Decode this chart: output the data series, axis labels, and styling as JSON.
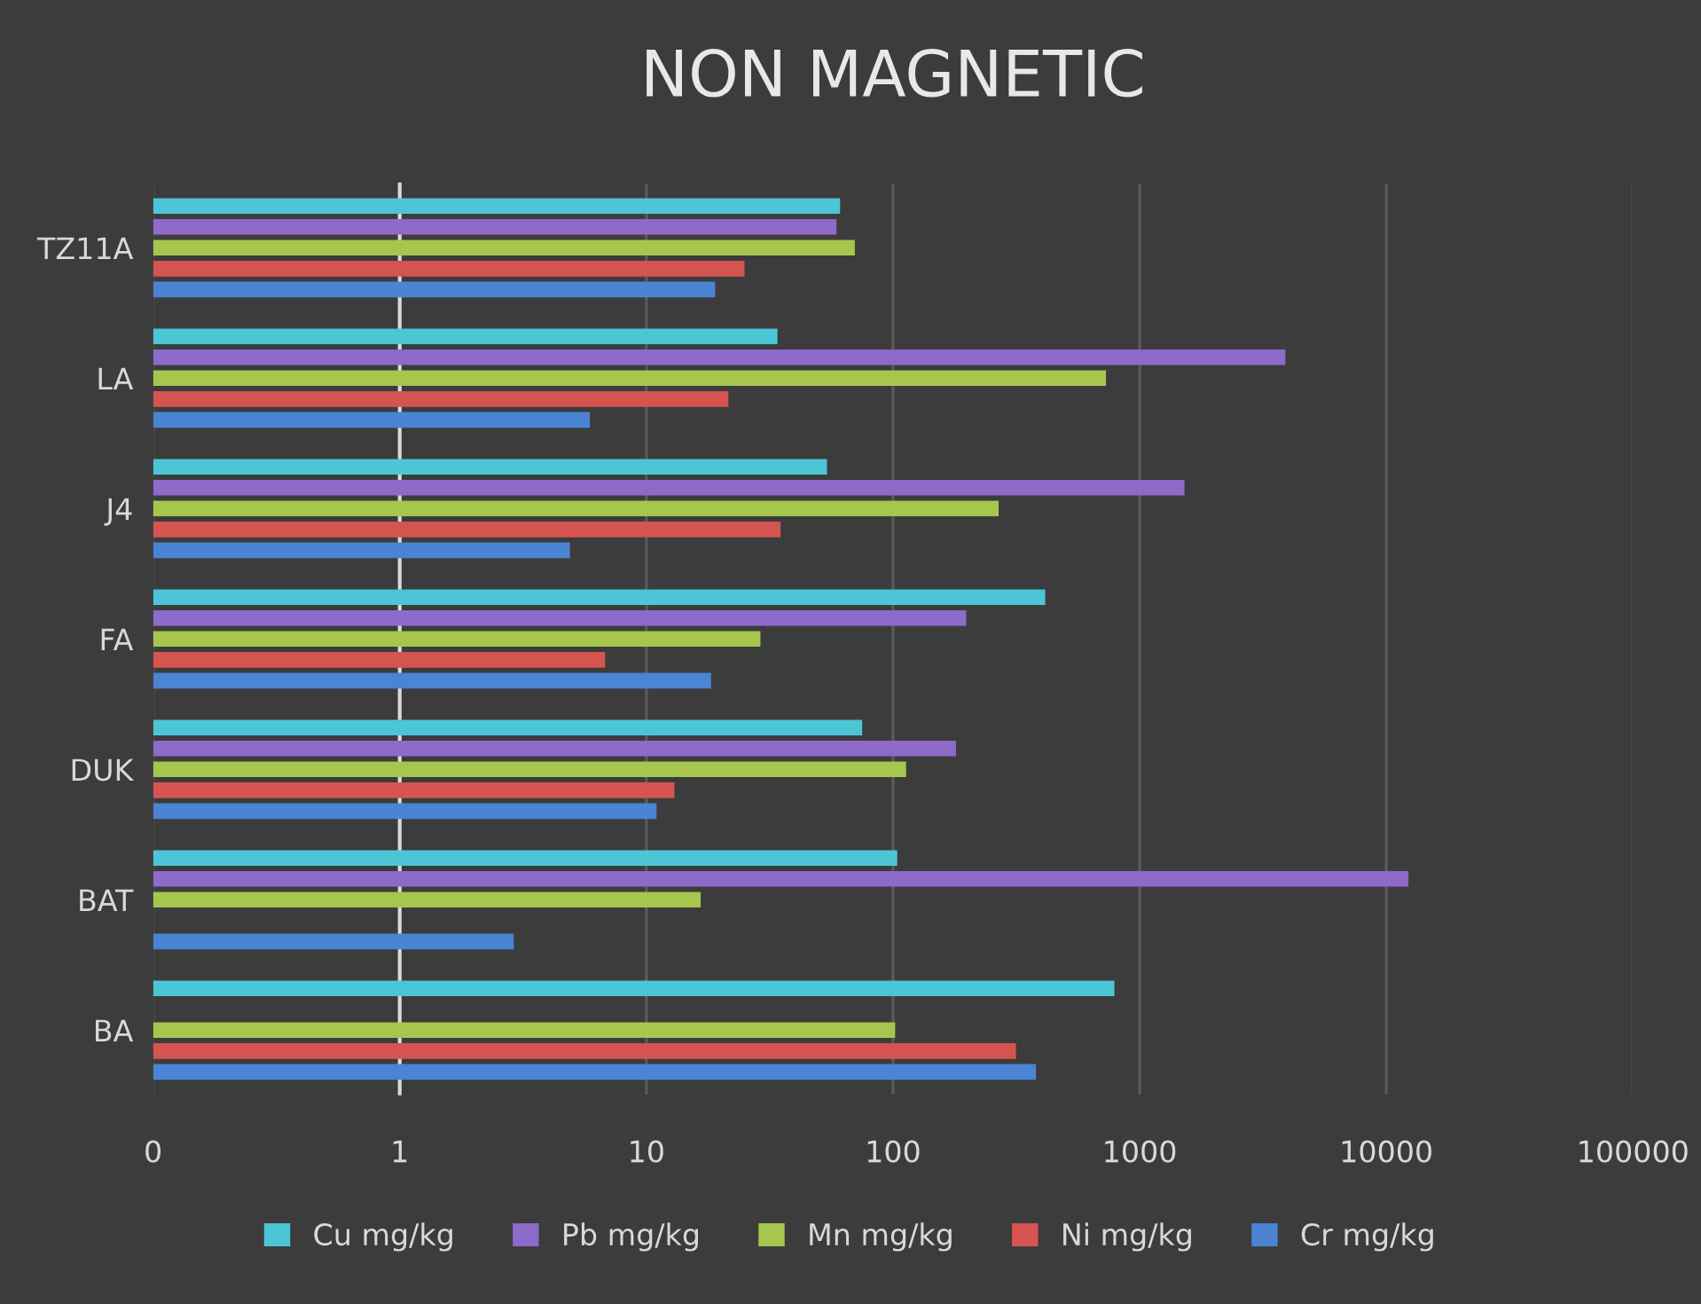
{
  "chart_data": {
    "type": "bar",
    "orientation": "horizontal",
    "title": "NON MAGNETIC",
    "categories": [
      "TZ11A",
      "LA",
      "J4",
      "FA",
      "DUK",
      "BAT",
      "BA"
    ],
    "series": [
      {
        "name": "Cu mg/kg",
        "color": "#4cc6d6",
        "values": [
          61,
          34,
          54,
          414,
          75,
          104,
          790
        ]
      },
      {
        "name": "Pb mg/kg",
        "color": "#8e6acb",
        "values": [
          59,
          3900,
          1520,
          198,
          180,
          12300,
          null
        ]
      },
      {
        "name": "Mn mg/kg",
        "color": "#a6c64e",
        "values": [
          70,
          730,
          268,
          29,
          113,
          16.6,
          102
        ]
      },
      {
        "name": "Ni mg/kg",
        "color": "#d65450",
        "values": [
          25,
          21.5,
          35,
          6.8,
          13,
          null,
          315
        ]
      },
      {
        "name": "Cr mg/kg",
        "color": "#4a84d2",
        "values": [
          19,
          5.9,
          4.9,
          18.3,
          11,
          2.9,
          380
        ]
      }
    ],
    "log": "x",
    "xlim": [
      0.1,
      100000
    ],
    "xticks": [
      {
        "value": 0.1,
        "label": "0"
      },
      1,
      10,
      100,
      1000,
      10000,
      100000
    ],
    "ref_lines": [
      {
        "axis": "x",
        "value": 1,
        "color": "#d9d9d9"
      }
    ],
    "grid": "x",
    "legend": "bottom"
  }
}
